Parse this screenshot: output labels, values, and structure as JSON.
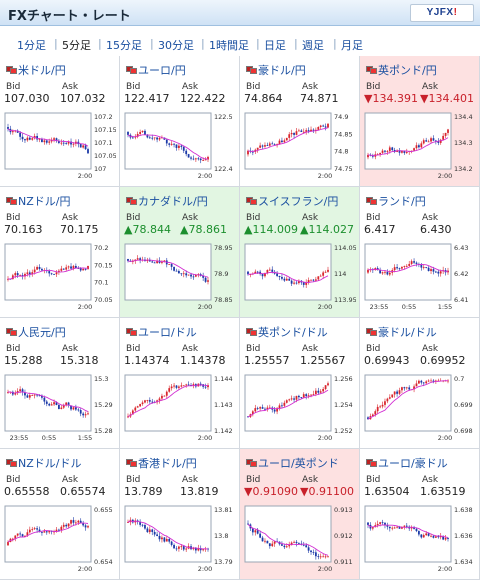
{
  "header": {
    "title": "FXチャート・レート",
    "logo": "YJFX!"
  },
  "tabs": [
    {
      "label": "1分足",
      "active": false
    },
    {
      "label": "5分足",
      "active": true
    },
    {
      "label": "15分足",
      "active": false
    },
    {
      "label": "30分足",
      "active": false
    },
    {
      "label": "1時間足",
      "active": false
    },
    {
      "label": "日足",
      "active": false
    },
    {
      "label": "週足",
      "active": false
    },
    {
      "label": "月足",
      "active": false
    }
  ],
  "labels": {
    "bid": "Bid",
    "ask": "Ask"
  },
  "colors": {
    "up_candle": "#d9262e",
    "down_candle": "#1c3aa8",
    "ma_line": "#d22fd2",
    "pink_bg": "#fde1e1",
    "green_bg": "#e2f6e2",
    "link": "#1a4fa0"
  },
  "pairs": [
    {
      "name": "米ドル/円",
      "bid": "107.030",
      "ask": "107.032",
      "dir": "none",
      "ticks": [
        "107.2",
        "107.15",
        "107.1",
        "107.05",
        "107"
      ],
      "xticks": [
        "",
        "",
        "2:00"
      ],
      "trend": -0.7,
      "ma": "falling",
      "seed": 1
    },
    {
      "name": "ユーロ/円",
      "bid": "122.417",
      "ask": "122.422",
      "dir": "none",
      "ticks": [
        "122.5",
        "",
        "122.4"
      ],
      "xticks": [
        "",
        "",
        "2:00"
      ],
      "trend": -0.5,
      "ma": "falling",
      "seed": 2
    },
    {
      "name": "豪ドル/円",
      "bid": "74.864",
      "ask": "74.871",
      "dir": "none",
      "ticks": [
        "74.9",
        "74.85",
        "74.8",
        "74.75"
      ],
      "xticks": [
        "",
        "",
        "2:00"
      ],
      "trend": 0.6,
      "ma": "rising",
      "seed": 3
    },
    {
      "name": "英ポンド/円",
      "bid": "▼134.391",
      "ask": "▼134.401",
      "dir": "down",
      "ticks": [
        "134.4",
        "134.3",
        "134.2"
      ],
      "xticks": [
        "",
        "",
        "2:00"
      ],
      "trend": 0.7,
      "ma": "rising",
      "seed": 4
    },
    {
      "name": "NZドル/円",
      "bid": "70.163",
      "ask": "70.175",
      "dir": "none",
      "ticks": [
        "70.2",
        "70.15",
        "70.1",
        "70.05"
      ],
      "xticks": [
        "",
        "",
        "2:00"
      ],
      "trend": 0.5,
      "ma": "rising",
      "seed": 5
    },
    {
      "name": "カナダドル/円",
      "bid": "▲78.844",
      "ask": "▲78.861",
      "dir": "up",
      "ticks": [
        "78.95",
        "78.9",
        "78.85"
      ],
      "xticks": [
        "",
        "",
        "2:00"
      ],
      "trend": -0.6,
      "ma": "falling",
      "seed": 6
    },
    {
      "name": "スイスフラン/円",
      "bid": "▲114.009",
      "ask": "▲114.027",
      "dir": "up",
      "ticks": [
        "114.05",
        "114",
        "113.95"
      ],
      "xticks": [
        "",
        "",
        "2:00"
      ],
      "trend": 0.0,
      "ma": "flat",
      "seed": 7
    },
    {
      "name": "ランド/円",
      "bid": "6.417",
      "ask": "6.430",
      "dir": "none",
      "ticks": [
        "6.43",
        "6.42",
        "6.41"
      ],
      "xticks": [
        "23:55",
        "0:55",
        "1:55"
      ],
      "trend": 0.0,
      "ma": "flat",
      "seed": 8
    },
    {
      "name": "人民元/円",
      "bid": "15.288",
      "ask": "15.318",
      "dir": "none",
      "ticks": [
        "15.3",
        "15.29",
        "15.28"
      ],
      "xticks": [
        "23:55",
        "0:55",
        "1:55"
      ],
      "trend": -0.6,
      "ma": "falling",
      "seed": 9
    },
    {
      "name": "ユーロ/ドル",
      "bid": "1.14374",
      "ask": "1.14378",
      "dir": "none",
      "ticks": [
        "1.144",
        "1.143",
        "1.142"
      ],
      "xticks": [
        "",
        "",
        "2:00"
      ],
      "trend": 0.6,
      "ma": "rising",
      "seed": 10
    },
    {
      "name": "英ポンド/ドル",
      "bid": "1.25557",
      "ask": "1.25567",
      "dir": "none",
      "ticks": [
        "1.256",
        "1.254",
        "1.252"
      ],
      "xticks": [
        "",
        "",
        "2:00"
      ],
      "trend": 0.8,
      "ma": "rising",
      "seed": 11
    },
    {
      "name": "豪ドル/ドル",
      "bid": "0.69943",
      "ask": "0.69952",
      "dir": "none",
      "ticks": [
        "0.7",
        "0.699",
        "0.698"
      ],
      "xticks": [
        "",
        "",
        "2:00"
      ],
      "trend": 0.8,
      "ma": "rising",
      "seed": 12
    },
    {
      "name": "NZドル/ドル",
      "bid": "0.65558",
      "ask": "0.65574",
      "dir": "none",
      "ticks": [
        "0.655",
        "0.654"
      ],
      "xticks": [
        "",
        "",
        "2:00"
      ],
      "trend": 0.6,
      "ma": "rising",
      "seed": 13
    },
    {
      "name": "香港ドル/円",
      "bid": "13.789",
      "ask": "13.819",
      "dir": "none",
      "ticks": [
        "13.81",
        "13.8",
        "13.79"
      ],
      "xticks": [
        "",
        "",
        "2:00"
      ],
      "trend": -0.6,
      "ma": "falling",
      "seed": 14
    },
    {
      "name": "ユーロ/英ポンド",
      "bid": "▼0.91090",
      "ask": "▼0.91100",
      "dir": "down",
      "ticks": [
        "0.913",
        "0.912",
        "0.911"
      ],
      "xticks": [
        "",
        "",
        "2:00"
      ],
      "trend": -0.6,
      "ma": "falling",
      "seed": 15
    },
    {
      "name": "ユーロ/豪ドル",
      "bid": "1.63504",
      "ask": "1.63519",
      "dir": "none",
      "ticks": [
        "1.638",
        "1.636",
        "1.634"
      ],
      "xticks": [
        "",
        "",
        "2:00"
      ],
      "trend": -0.7,
      "ma": "falling",
      "seed": 16
    }
  ]
}
